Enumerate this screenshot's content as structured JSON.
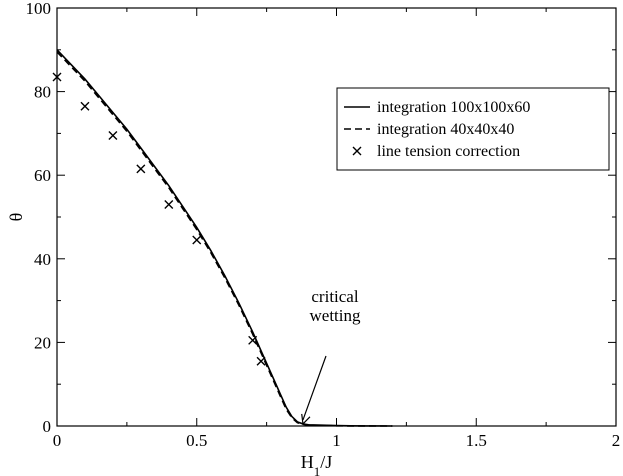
{
  "chart_data": {
    "type": "line",
    "title": "",
    "xlabel": "H",
    "xlabel_sub": "1",
    "xlabel_suffix": "/J",
    "ylabel": "θ",
    "xlim": [
      0,
      2
    ],
    "ylim": [
      0,
      100
    ],
    "xticks": [
      0,
      0.5,
      1,
      1.5,
      2
    ],
    "xtick_labels": [
      "0",
      "0.5",
      "1",
      "1.5",
      "2"
    ],
    "yticks": [
      0,
      20,
      40,
      60,
      80,
      100
    ],
    "ytick_labels": [
      "0",
      "20",
      "40",
      "60",
      "80",
      "100"
    ],
    "grid": false,
    "legend_position": "top-right",
    "series": [
      {
        "name": "integration 100x100x60",
        "style": "solid",
        "color": "#000000",
        "x": [
          0,
          0.05,
          0.1,
          0.15,
          0.2,
          0.25,
          0.3,
          0.35,
          0.4,
          0.45,
          0.5,
          0.55,
          0.6,
          0.65,
          0.7,
          0.75,
          0.78,
          0.8,
          0.82,
          0.84,
          0.86,
          0.88,
          0.9,
          0.95,
          1.0,
          1.05,
          1.1,
          1.15,
          1.2
        ],
        "y": [
          90,
          86.5,
          83,
          79,
          75,
          71,
          66.5,
          62,
          57.5,
          52.5,
          47.5,
          42,
          36,
          29.5,
          22.5,
          15,
          10.5,
          7.5,
          4.5,
          2.3,
          1.0,
          0.5,
          0.3,
          0.2,
          0.1,
          0.05,
          0.02,
          0.01,
          0
        ]
      },
      {
        "name": "integration 40x40x40",
        "style": "dashed",
        "color": "#000000",
        "x": [
          0,
          0.05,
          0.1,
          0.15,
          0.2,
          0.25,
          0.3,
          0.35,
          0.4,
          0.45,
          0.5,
          0.55,
          0.6,
          0.65,
          0.7,
          0.75,
          0.78,
          0.8,
          0.82,
          0.84,
          0.86,
          0.88,
          0.9,
          0.95,
          1.0,
          1.05,
          1.1,
          1.15,
          1.2
        ],
        "y": [
          89.5,
          86,
          82.5,
          78.5,
          74.5,
          70.5,
          66,
          61.5,
          57,
          52,
          47,
          41.5,
          35.5,
          29,
          22,
          14.5,
          10,
          7,
          4,
          2.0,
          0.8,
          0.4,
          0.2,
          0.1,
          0.05,
          0.02,
          0.01,
          0,
          0
        ]
      },
      {
        "name": "line tension correction",
        "style": "marker-x",
        "color": "#000000",
        "x": [
          0,
          0.1,
          0.2,
          0.3,
          0.4,
          0.5,
          0.7,
          0.73
        ],
        "y": [
          83.5,
          76.5,
          69.5,
          61.5,
          53,
          44.5,
          20.5,
          15.5
        ]
      }
    ],
    "annotations": [
      {
        "text_lines": [
          "critical",
          "wetting"
        ],
        "arrow_to": [
          0.88,
          0.5
        ]
      }
    ]
  }
}
